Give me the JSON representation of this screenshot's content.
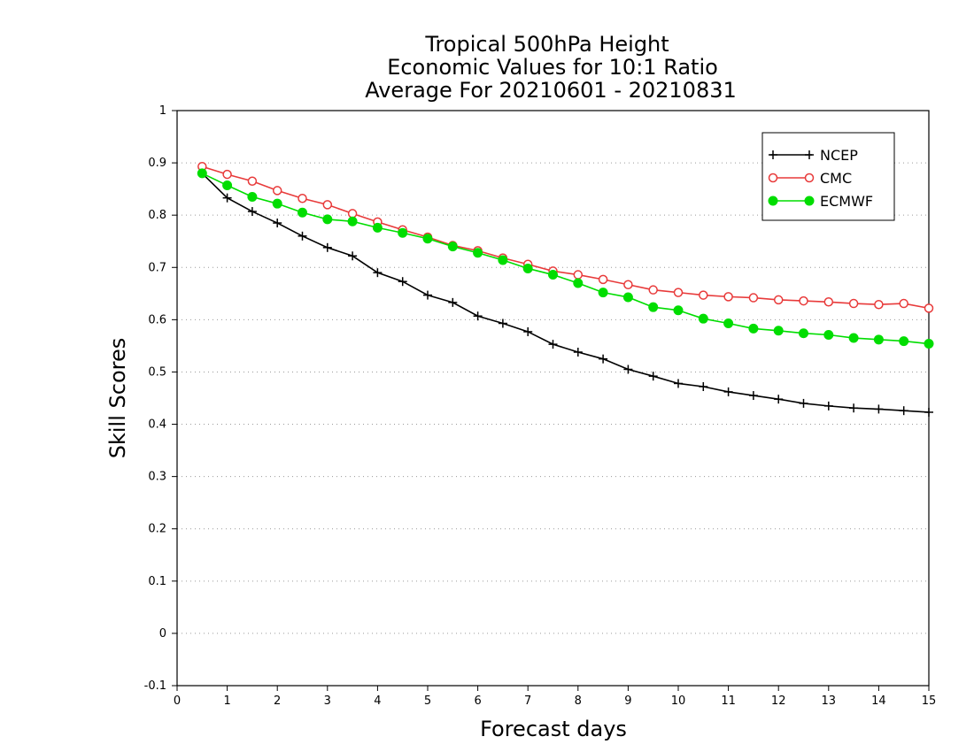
{
  "chart_data": {
    "type": "line",
    "title_lines": [
      "Tropical 500hPa Height",
      "Economic Values for 10:1 Ratio",
      "Average For 20210601 - 20210831"
    ],
    "xlabel": "Forecast days",
    "ylabel": "Skill Scores",
    "xlim": [
      0,
      15
    ],
    "ylim": [
      -0.1,
      1
    ],
    "x_ticks": [
      0,
      1,
      2,
      3,
      4,
      5,
      6,
      7,
      8,
      9,
      10,
      11,
      12,
      13,
      14,
      15
    ],
    "y_ticks": [
      -0.1,
      0,
      0.1,
      0.2,
      0.3,
      0.4,
      0.5,
      0.6,
      0.7,
      0.8,
      0.9,
      1
    ],
    "y_tick_labels": [
      "-0.1",
      "0",
      "0.1",
      "0.2",
      "0.3",
      "0.4",
      "0.5",
      "0.6",
      "0.7",
      "0.8",
      "0.9",
      "1"
    ],
    "grid": "horizontal dotted",
    "legend_position": "top-right",
    "x": [
      0.5,
      1,
      1.5,
      2,
      2.5,
      3,
      3.5,
      4,
      4.5,
      5,
      5.5,
      6,
      6.5,
      7,
      7.5,
      8,
      8.5,
      9,
      9.5,
      10,
      10.5,
      11,
      11.5,
      12,
      12.5,
      13,
      13.5,
      14,
      14.5,
      15
    ],
    "series": [
      {
        "name": "NCEP",
        "color": "#000000",
        "marker": "plus",
        "values": [
          0.88,
          0.833,
          0.807,
          0.785,
          0.76,
          0.738,
          0.722,
          0.69,
          0.673,
          0.647,
          0.633,
          0.607,
          0.593,
          0.577,
          0.553,
          0.538,
          0.525,
          0.505,
          0.492,
          0.478,
          0.472,
          0.462,
          0.455,
          0.448,
          0.44,
          0.435,
          0.431,
          0.429,
          0.426,
          0.423
        ]
      },
      {
        "name": "CMC",
        "color": "#e83a3a",
        "marker": "open-circle",
        "values": [
          0.893,
          0.878,
          0.865,
          0.847,
          0.832,
          0.82,
          0.803,
          0.787,
          0.772,
          0.758,
          0.742,
          0.732,
          0.718,
          0.706,
          0.693,
          0.686,
          0.677,
          0.667,
          0.657,
          0.652,
          0.647,
          0.644,
          0.642,
          0.638,
          0.636,
          0.634,
          0.631,
          0.629,
          0.631,
          0.622
        ]
      },
      {
        "name": "ECMWF",
        "color": "#00dd00",
        "marker": "filled-circle",
        "values": [
          0.88,
          0.857,
          0.835,
          0.822,
          0.805,
          0.792,
          0.788,
          0.776,
          0.766,
          0.755,
          0.74,
          0.728,
          0.714,
          0.698,
          0.686,
          0.67,
          0.652,
          0.643,
          0.624,
          0.618,
          0.602,
          0.593,
          0.583,
          0.579,
          0.574,
          0.571,
          0.565,
          0.562,
          0.559,
          0.554
        ]
      }
    ]
  }
}
